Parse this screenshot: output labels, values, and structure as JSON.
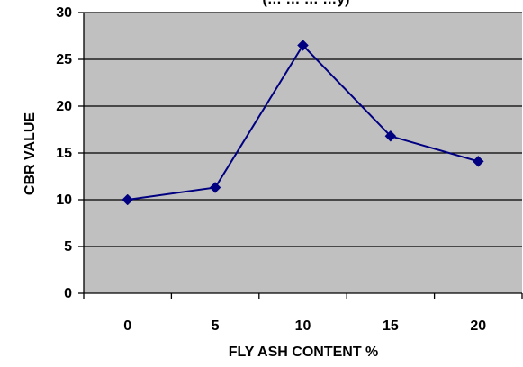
{
  "chart_data": {
    "type": "line",
    "title": "(… … … …y)",
    "xlabel": "FLY ASH CONTENT %",
    "ylabel": "CBR VALUE",
    "categories": [
      "0",
      "5",
      "10",
      "15",
      "20"
    ],
    "series": [
      {
        "values": [
          10.0,
          11.3,
          26.5,
          16.8,
          14.1
        ]
      }
    ],
    "ylim": [
      0,
      30
    ],
    "yticks": [
      0,
      5,
      10,
      15,
      20,
      25,
      30
    ],
    "grid": "horizontal",
    "legend": "none",
    "colors": {
      "plot_background": "#c0c0c0",
      "series_line": "#000080",
      "series_marker": "#000080",
      "gridline": "#000000"
    }
  }
}
